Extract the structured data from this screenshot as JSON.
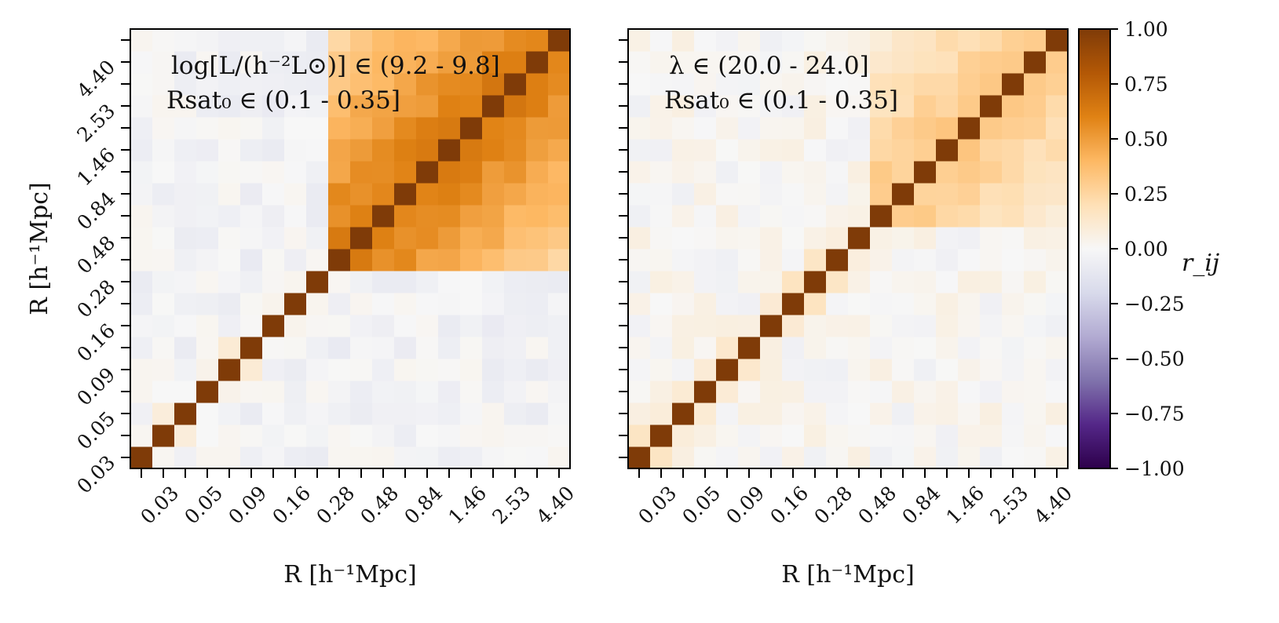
{
  "chart_data": {
    "type": "heatmap",
    "n_bins": 20,
    "tick_labels": [
      "0.03",
      "0.05",
      "0.09",
      "0.16",
      "0.28",
      "0.48",
      "0.84",
      "1.46",
      "2.53",
      "4.40"
    ],
    "xlabel": "R [h⁻¹Mpc]",
    "ylabel": "R [h⁻¹Mpc]",
    "panels": [
      {
        "id": "left",
        "annotation_line1": "log[L/(h⁻²L⊙)] ∈ (9.2 - 9.8]",
        "annotation_line2": "Rsat₀ ∈ (0.1 - 0.35]",
        "block_start": 9,
        "block_peak": 0.62,
        "block_floor": 0.18,
        "near_diag": 0.08,
        "background_level": -0.03
      },
      {
        "id": "right",
        "annotation_line1": "λ ∈ (20.0 - 24.0]",
        "annotation_line2": "Rsat₀ ∈ (0.1 - 0.35]",
        "block_start": 11,
        "block_peak": 0.3,
        "block_floor": 0.05,
        "near_diag": 0.1,
        "background_level": 0.01
      }
    ],
    "colorbar": {
      "label": "r_ij",
      "min": -1.0,
      "max": 1.0,
      "tick_labels": [
        "1.00",
        "0.75",
        "0.50",
        "0.25",
        "0.00",
        "−0.25",
        "−0.50",
        "−0.75",
        "−1.00"
      ],
      "cmap": "PuOr_r",
      "color_stops": [
        "#2d004b",
        "#542788",
        "#8073ac",
        "#b2abd2",
        "#d8daeb",
        "#f7f7f7",
        "#fee0b6",
        "#fdb863",
        "#e08214",
        "#b35806",
        "#7f3b08"
      ]
    }
  }
}
